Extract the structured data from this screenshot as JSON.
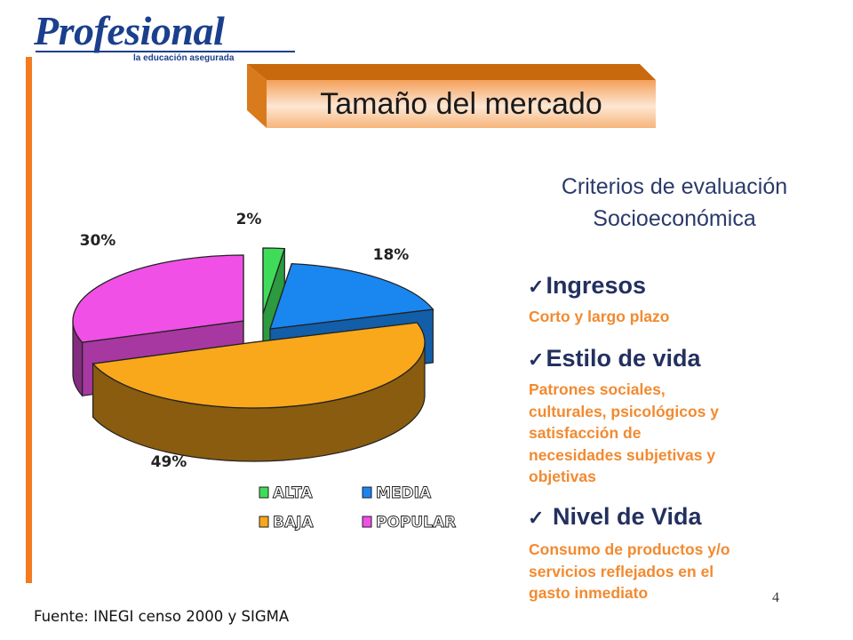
{
  "header": {
    "logo_text": "Profesional",
    "logo_tagline": "la educación asegurada"
  },
  "slide_title": "Tamaño del mercado",
  "criteria": {
    "title_line1": "Criterios de evaluación",
    "title_line2": "Socioeconómica",
    "items": [
      {
        "heading": "Ingresos",
        "lines": [
          "Corto y largo plazo"
        ]
      },
      {
        "heading": "Estilo de vida",
        "lines": [
          "Patrones sociales,",
          "culturales, psicológicos y",
          "satisfacción de",
          "necesidades subjetivas y",
          "objetivas"
        ]
      },
      {
        "heading": "Nivel de Vida",
        "lines": [
          "Consumo de productos y/o",
          "servicios reflejados en el",
          "gasto inmediato"
        ]
      }
    ]
  },
  "chart_data": {
    "type": "pie",
    "style": "3d-exploded",
    "categories": [
      "ALTA",
      "MEDIA",
      "BAJA",
      "POPULAR"
    ],
    "values": [
      2,
      18,
      49,
      30
    ],
    "labels": [
      "2%",
      "18%",
      "49%",
      "30%"
    ],
    "colors": {
      "ALTA": "#3fdc5a",
      "MEDIA": "#1a86f0",
      "BAJA": "#f9a81b",
      "POPULAR": "#f050e6"
    },
    "legend": {
      "placement": "bottom",
      "entries": [
        "ALTA",
        "MEDIA",
        "BAJA",
        "POPULAR"
      ]
    }
  },
  "page_number": "4",
  "source": "Fuente: INEGI censo 2000 y SIGMA",
  "colors": {
    "accent_orange": "#f47b20",
    "navy": "#1b3f8c",
    "text_orange": "#f28a30"
  }
}
